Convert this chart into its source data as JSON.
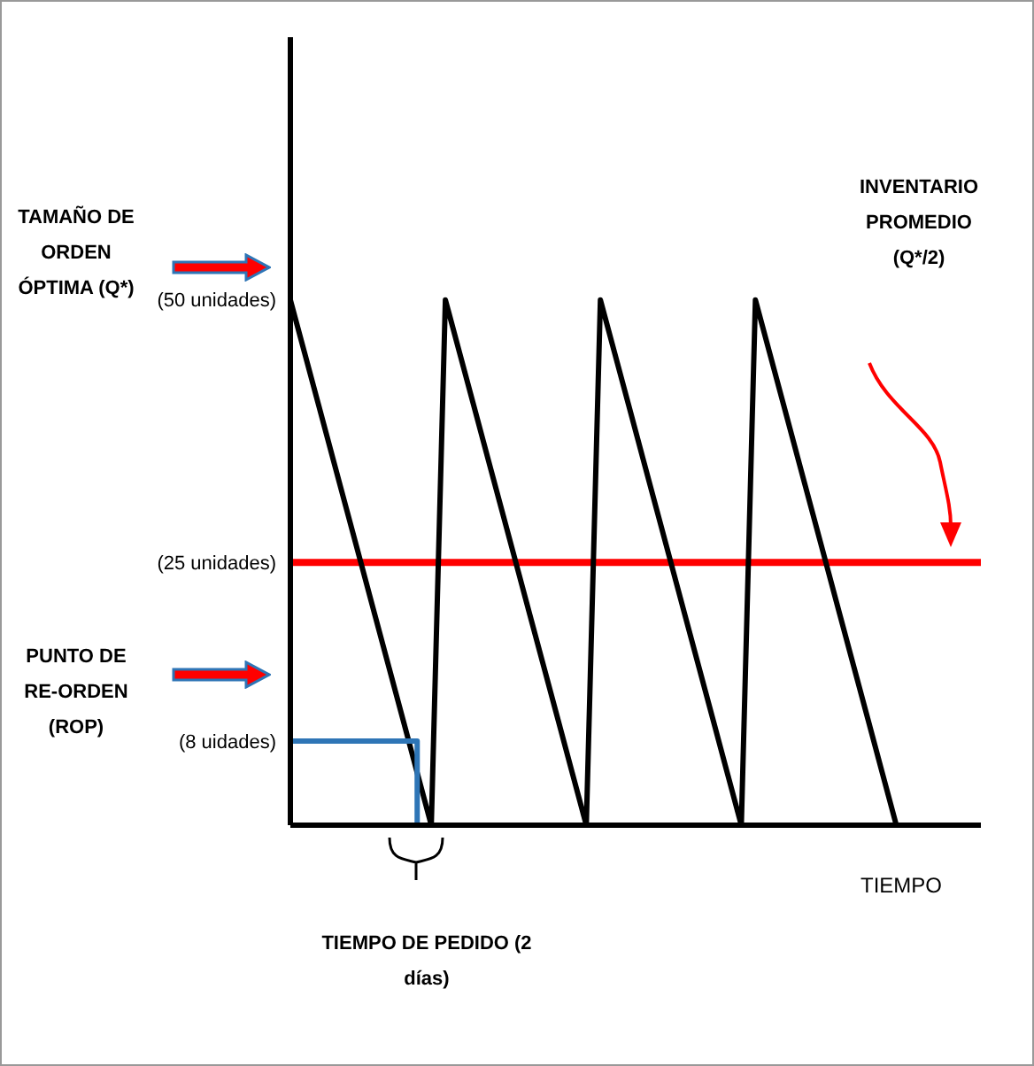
{
  "chart_data": {
    "type": "line",
    "xlabel": "TIEMPO",
    "annotations": [
      "TAMAÑO DE ORDEN ÓPTIMA (Q*)",
      "PUNTO DE RE-ORDEN (ROP)",
      "INVENTARIO PROMEDIO (Q*/2)",
      "TIEMPO DE PEDIDO (2 días)"
    ],
    "categories": [
      null,
      null,
      null,
      null,
      null,
      null,
      null,
      null,
      null,
      null,
      null,
      null,
      null,
      null,
      null,
      null,
      null,
      null,
      null,
      null,
      null,
      null,
      null,
      null,
      null,
      null,
      null,
      null,
      null,
      null,
      null,
      null,
      null,
      null,
      null,
      null,
      null,
      null,
      null,
      null,
      null,
      null,
      null,
      null,
      null,
      null,
      null,
      null,
      null,
      null
    ],
    "series": [
      {
        "color": "#000000",
        "values": [
          50,
          45,
          40,
          35,
          30,
          25,
          20,
          15,
          10,
          5,
          0,
          50,
          45,
          40,
          35,
          30,
          25,
          20,
          15,
          10,
          5,
          0,
          50,
          45,
          40,
          35,
          30,
          25,
          20,
          15,
          10,
          5,
          0,
          50,
          45,
          40,
          35,
          30,
          25,
          20,
          15,
          10,
          5,
          0,
          null,
          null,
          null,
          null,
          null,
          null
        ]
      },
      {
        "type": "step",
        "color": "#2e75b6",
        "values": [
          8,
          8,
          8,
          8,
          8,
          8,
          8,
          8,
          8,
          0,
          null,
          null,
          null,
          null,
          null,
          null,
          null,
          null,
          null,
          null,
          null,
          null,
          null,
          null,
          null,
          null,
          null,
          null,
          null,
          null,
          null,
          null,
          null,
          null,
          null,
          null,
          null,
          null,
          null,
          null,
          null,
          null,
          null,
          null,
          null,
          null,
          null,
          null,
          null,
          null
        ]
      }
    ],
    "ylim": [
      0,
      75
    ],
    "yticks": [
      {
        "value": 8,
        "label": "(8 uidades)"
      },
      {
        "value": 25,
        "label": "(25 unidades)"
      },
      {
        "value": 50,
        "label": "(50 unidades)"
      }
    ],
    "ref_lines": [
      {
        "axis": "y",
        "value": 25,
        "color": "#ff0000"
      }
    ],
    "tick_labels": "y",
    "marker": "none",
    "line_style": "solid"
  }
}
